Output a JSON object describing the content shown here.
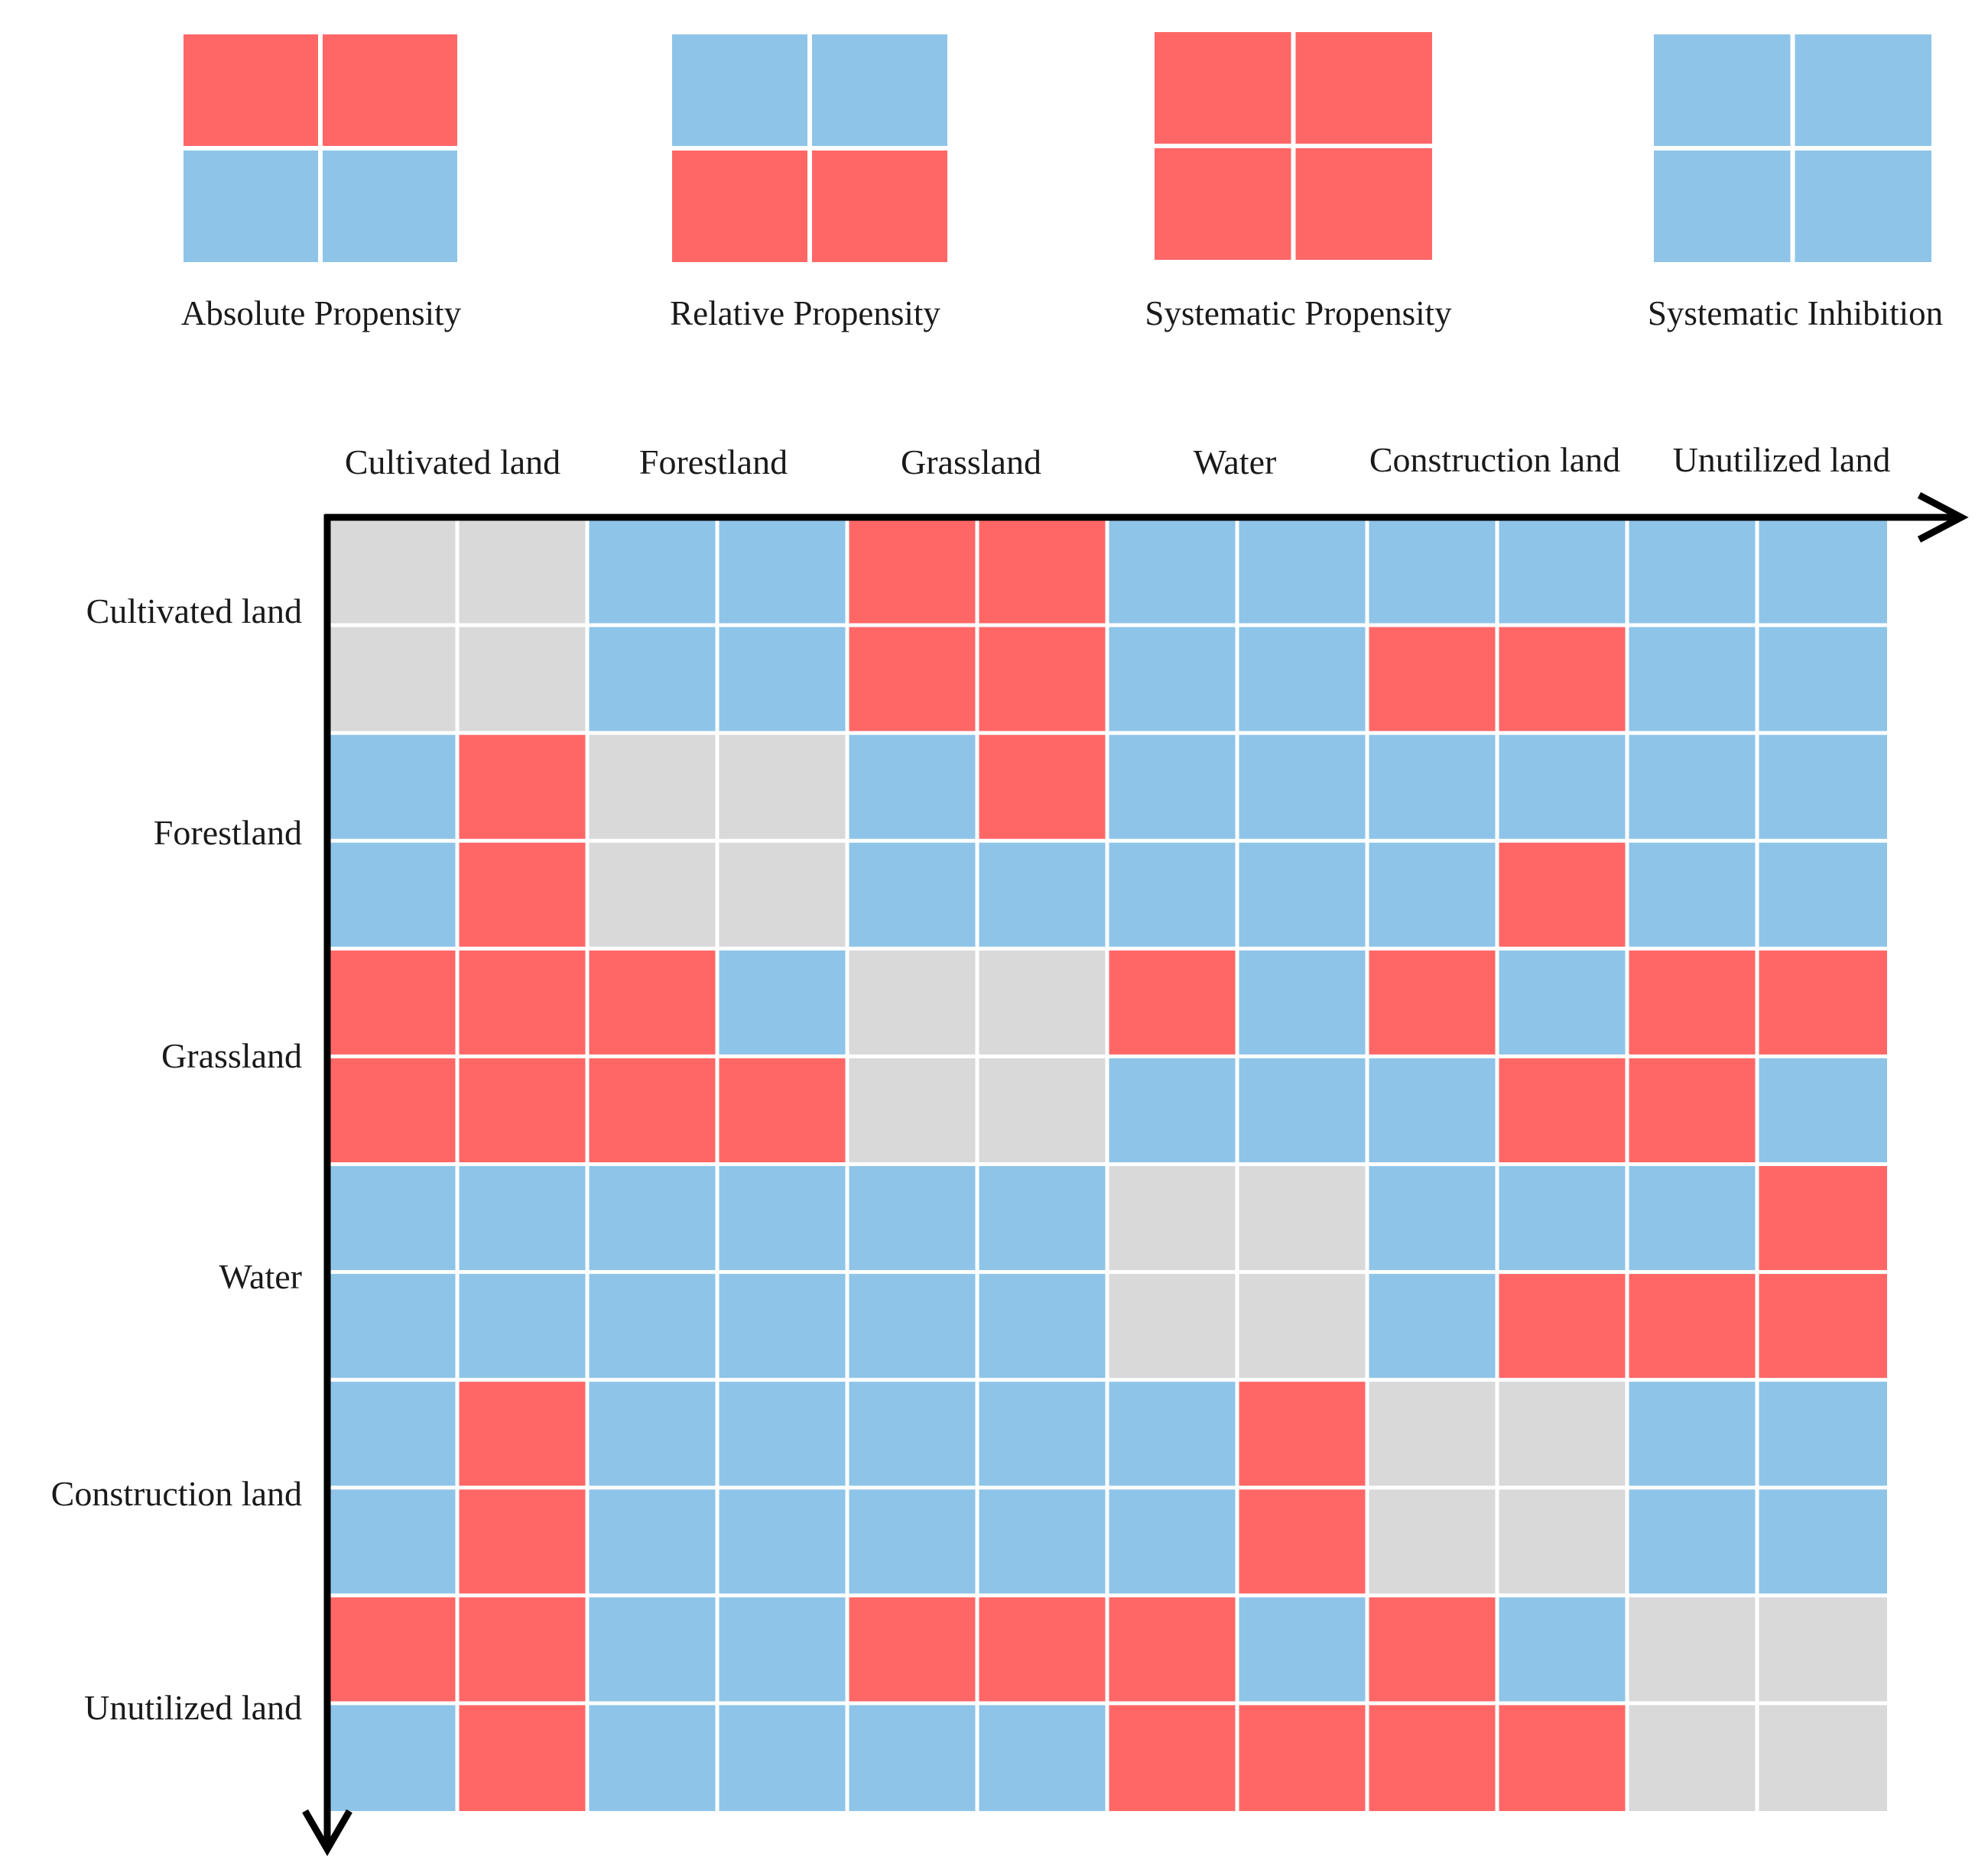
{
  "colors": {
    "red": "#FF6767",
    "blue": "#8EC4E8",
    "gray": "#D9D9D9",
    "gridline": "#FFFFFF",
    "axis": "#000000"
  },
  "legend": [
    {
      "label": "Absolute Propensity",
      "pattern": [
        [
          "R",
          "R"
        ],
        [
          "B",
          "B"
        ]
      ]
    },
    {
      "label": "Relative Propensity",
      "pattern": [
        [
          "B",
          "B"
        ],
        [
          "R",
          "R"
        ]
      ]
    },
    {
      "label": "Systematic Propensity",
      "pattern": [
        [
          "R",
          "R"
        ],
        [
          "R",
          "R"
        ]
      ]
    },
    {
      "label": "Systematic Inhibition",
      "pattern": [
        [
          "B",
          "B"
        ],
        [
          "B",
          "B"
        ]
      ]
    }
  ],
  "chart_data": {
    "type": "heatmap",
    "title": "",
    "x_categories": [
      "Cultivated land",
      "Forestland",
      "Grassland",
      "Water",
      "Construction land",
      "Unutilized land"
    ],
    "y_categories": [
      "Cultivated land",
      "Forestland",
      "Grassland",
      "Water",
      "Construction land",
      "Unutilized land"
    ],
    "cell_legend": {
      "R": "red",
      "B": "blue",
      "G": "gray (diagonal)"
    },
    "grid": [
      [
        "G",
        "G",
        "B",
        "B",
        "R",
        "R",
        "B",
        "B",
        "B",
        "B",
        "B",
        "B"
      ],
      [
        "G",
        "G",
        "B",
        "B",
        "R",
        "R",
        "B",
        "B",
        "R",
        "R",
        "B",
        "B"
      ],
      [
        "B",
        "R",
        "G",
        "G",
        "B",
        "R",
        "B",
        "B",
        "B",
        "B",
        "B",
        "B"
      ],
      [
        "B",
        "R",
        "G",
        "G",
        "B",
        "B",
        "B",
        "B",
        "B",
        "R",
        "B",
        "B"
      ],
      [
        "R",
        "R",
        "R",
        "B",
        "G",
        "G",
        "R",
        "B",
        "R",
        "B",
        "R",
        "R"
      ],
      [
        "R",
        "R",
        "R",
        "R",
        "G",
        "G",
        "B",
        "B",
        "B",
        "R",
        "R",
        "B"
      ],
      [
        "B",
        "B",
        "B",
        "B",
        "B",
        "B",
        "G",
        "G",
        "B",
        "B",
        "B",
        "R"
      ],
      [
        "B",
        "B",
        "B",
        "B",
        "B",
        "B",
        "G",
        "G",
        "B",
        "R",
        "R",
        "R"
      ],
      [
        "B",
        "R",
        "B",
        "B",
        "B",
        "B",
        "B",
        "R",
        "G",
        "G",
        "B",
        "B"
      ],
      [
        "B",
        "R",
        "B",
        "B",
        "B",
        "B",
        "B",
        "R",
        "G",
        "G",
        "B",
        "B"
      ],
      [
        "R",
        "R",
        "B",
        "B",
        "R",
        "R",
        "R",
        "B",
        "R",
        "B",
        "G",
        "G"
      ],
      [
        "B",
        "R",
        "B",
        "B",
        "B",
        "B",
        "R",
        "R",
        "R",
        "R",
        "G",
        "G"
      ]
    ]
  }
}
